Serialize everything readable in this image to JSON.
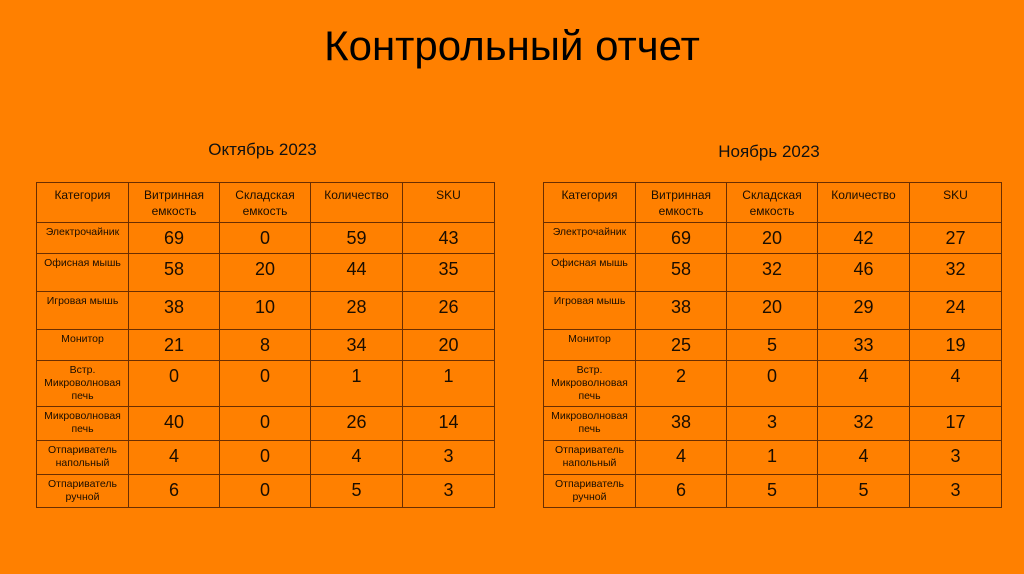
{
  "title": "Контрольный отчет",
  "columns": [
    "Категория",
    "Витринная емкость",
    "Складская емкость",
    "Количество",
    "SKU"
  ],
  "tables": [
    {
      "period": "Октябрь 2023",
      "rows": [
        [
          "Электрочайник",
          "69",
          "0",
          "59",
          "43"
        ],
        [
          "Офисная мышь",
          "58",
          "20",
          "44",
          "35"
        ],
        [
          "Игровая мышь",
          "38",
          "10",
          "28",
          "26"
        ],
        [
          "Монитор",
          "21",
          "8",
          "34",
          "20"
        ],
        [
          "Встр. Микроволновая печь",
          "0",
          "0",
          "1",
          "1"
        ],
        [
          "Микроволновая печь",
          "40",
          "0",
          "26",
          "14"
        ],
        [
          "Отпариватель напольный",
          "4",
          "0",
          "4",
          "3"
        ],
        [
          "Отпариватель ручной",
          "6",
          "0",
          "5",
          "3"
        ]
      ]
    },
    {
      "period": "Ноябрь 2023",
      "rows": [
        [
          "Электрочайник",
          "69",
          "20",
          "42",
          "27"
        ],
        [
          "Офисная мышь",
          "58",
          "32",
          "46",
          "32"
        ],
        [
          "Игровая мышь",
          "38",
          "20",
          "29",
          "24"
        ],
        [
          "Монитор",
          "25",
          "5",
          "33",
          "19"
        ],
        [
          "Встр. Микроволновая печь",
          "2",
          "0",
          "4",
          "4"
        ],
        [
          "Микроволновая печь",
          "38",
          "3",
          "32",
          "17"
        ],
        [
          "Отпариватель напольный",
          "4",
          "1",
          "4",
          "3"
        ],
        [
          "Отпариватель ручной",
          "6",
          "5",
          "5",
          "3"
        ]
      ]
    }
  ]
}
